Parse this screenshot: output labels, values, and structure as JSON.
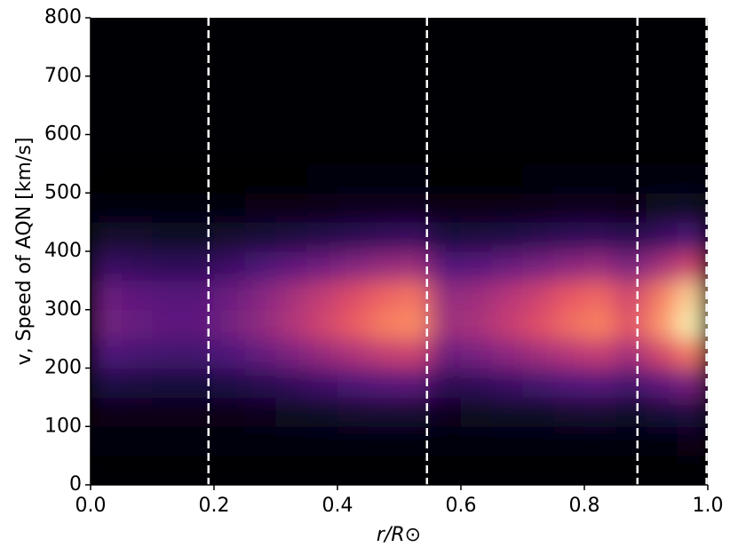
{
  "chart_data": {
    "type": "heatmap",
    "colormap": "magma",
    "xlabel": "r/R⊙",
    "ylabel": "v, Speed of AQN [km/s]",
    "xlim": [
      0,
      1
    ],
    "ylim": [
      0,
      800
    ],
    "xticks": [
      {
        "value": 0,
        "label": "0.0"
      },
      0.2,
      0.4,
      0.6,
      0.8,
      {
        "value": 1,
        "label": "1.0"
      }
    ],
    "yticks": [
      0,
      100,
      200,
      300,
      400,
      500,
      600,
      700,
      800
    ],
    "vlines": [
      0.191,
      0.545,
      0.886,
      0.998
    ],
    "vline_color": "#ffffff",
    "x_edges": [
      0,
      0.05,
      0.1,
      0.15,
      0.2,
      0.25,
      0.3,
      0.35,
      0.4,
      0.45,
      0.5,
      0.55,
      0.6,
      0.65,
      0.7,
      0.75,
      0.8,
      0.85,
      0.9,
      0.95,
      1
    ],
    "y_edges": [
      50,
      100,
      150,
      200,
      250,
      300,
      350,
      400,
      450,
      500,
      550
    ],
    "z": [
      [
        0.01,
        0.01,
        0.01,
        0.01,
        0.01,
        0.01,
        0.01,
        0.02,
        0.02,
        0.02,
        0.02,
        0.01,
        0.01,
        0.01,
        0.02,
        0.02,
        0.02,
        0.02,
        0.02,
        0.03
      ],
      [
        0.04,
        0.04,
        0.04,
        0.04,
        0.04,
        0.05,
        0.06,
        0.07,
        0.08,
        0.09,
        0.09,
        0.05,
        0.06,
        0.07,
        0.07,
        0.08,
        0.09,
        0.07,
        0.1,
        0.12
      ],
      [
        0.13,
        0.12,
        0.11,
        0.11,
        0.13,
        0.15,
        0.18,
        0.21,
        0.24,
        0.27,
        0.28,
        0.16,
        0.17,
        0.2,
        0.22,
        0.25,
        0.27,
        0.22,
        0.29,
        0.36
      ],
      [
        0.25,
        0.23,
        0.22,
        0.22,
        0.25,
        0.3,
        0.36,
        0.42,
        0.48,
        0.53,
        0.56,
        0.32,
        0.35,
        0.4,
        0.45,
        0.5,
        0.54,
        0.45,
        0.58,
        0.72
      ],
      [
        0.34,
        0.31,
        0.29,
        0.29,
        0.34,
        0.41,
        0.49,
        0.57,
        0.65,
        0.73,
        0.76,
        0.44,
        0.47,
        0.54,
        0.61,
        0.69,
        0.74,
        0.61,
        0.78,
        0.98
      ],
      [
        0.32,
        0.29,
        0.27,
        0.27,
        0.32,
        0.38,
        0.46,
        0.53,
        0.6,
        0.67,
        0.71,
        0.41,
        0.44,
        0.5,
        0.56,
        0.64,
        0.68,
        0.56,
        0.73,
        0.91
      ],
      [
        0.2,
        0.18,
        0.17,
        0.17,
        0.2,
        0.24,
        0.29,
        0.33,
        0.38,
        0.42,
        0.44,
        0.26,
        0.27,
        0.31,
        0.35,
        0.4,
        0.43,
        0.35,
        0.46,
        0.57
      ],
      [
        0.08,
        0.08,
        0.07,
        0.07,
        0.08,
        0.1,
        0.12,
        0.14,
        0.16,
        0.18,
        0.19,
        0.11,
        0.12,
        0.13,
        0.15,
        0.17,
        0.18,
        0.15,
        0.19,
        0.24
      ],
      [
        0.02,
        0.02,
        0.02,
        0.02,
        0.02,
        0.03,
        0.03,
        0.04,
        0.05,
        0.05,
        0.05,
        0.03,
        0.03,
        0.04,
        0.04,
        0.05,
        0.05,
        0.04,
        0.06,
        0.07
      ],
      [
        0,
        0,
        0,
        0,
        0,
        0,
        0,
        0.01,
        0.01,
        0.01,
        0.01,
        0,
        0,
        0,
        0.01,
        0.01,
        0.01,
        0.01,
        0.01,
        0.02
      ]
    ]
  }
}
